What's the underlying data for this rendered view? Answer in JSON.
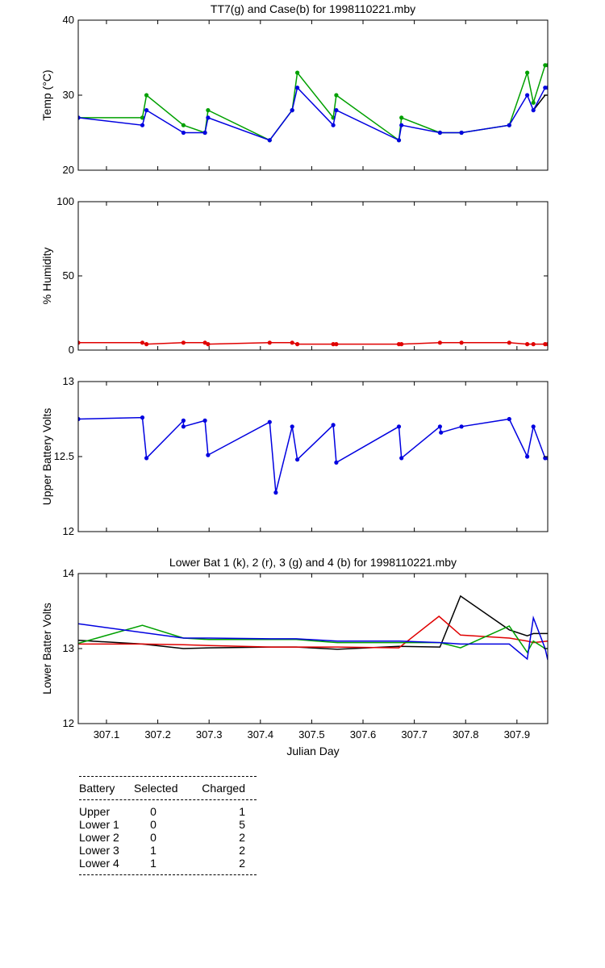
{
  "chart_data": [
    {
      "type": "line",
      "title": "TT7(g) and Case(b) for 1998110221.mby",
      "ylabel": "Temp (°C)",
      "xlabel": "",
      "xlim": [
        307.045,
        307.96
      ],
      "ylim": [
        20,
        40
      ],
      "yticks": [
        20,
        30,
        40
      ],
      "xticks": [
        307.1,
        307.2,
        307.3,
        307.4,
        307.5,
        307.6,
        307.7,
        307.8,
        307.9
      ],
      "show_xtick_labels": false,
      "series": [
        {
          "color": "#00a000",
          "markers": true,
          "x": [
            307.045,
            307.17,
            307.178,
            307.25,
            307.292,
            307.298,
            307.418,
            307.462,
            307.472,
            307.542,
            307.548,
            307.67,
            307.675,
            307.75,
            307.792,
            307.885,
            307.92,
            307.932,
            307.955,
            307.96
          ],
          "y": [
            27,
            27,
            30,
            26,
            25,
            28,
            24,
            28,
            33,
            27,
            30,
            24,
            27,
            25,
            25,
            26,
            33,
            29,
            34,
            34
          ]
        },
        {
          "color": "#000000",
          "markers": false,
          "x": [
            307.932,
            307.955,
            307.96
          ],
          "y": [
            28,
            30,
            30
          ]
        },
        {
          "color": "#0000e0",
          "markers": true,
          "x": [
            307.045,
            307.17,
            307.178,
            307.25,
            307.292,
            307.298,
            307.418,
            307.462,
            307.472,
            307.542,
            307.548,
            307.67,
            307.675,
            307.75,
            307.792,
            307.885,
            307.92,
            307.932,
            307.955,
            307.96
          ],
          "y": [
            27,
            26,
            28,
            25,
            25,
            27,
            24,
            28,
            31,
            26,
            28,
            24,
            26,
            25,
            25,
            26,
            30,
            28,
            31,
            31
          ]
        }
      ]
    },
    {
      "type": "line",
      "title": "",
      "ylabel": "% Humidity",
      "xlabel": "",
      "xlim": [
        307.045,
        307.96
      ],
      "ylim": [
        0,
        100
      ],
      "yticks": [
        0,
        50,
        100
      ],
      "xticks": [
        307.1,
        307.2,
        307.3,
        307.4,
        307.5,
        307.6,
        307.7,
        307.8,
        307.9
      ],
      "show_xtick_labels": false,
      "series": [
        {
          "color": "#e00000",
          "markers": true,
          "x": [
            307.045,
            307.17,
            307.178,
            307.25,
            307.292,
            307.298,
            307.418,
            307.462,
            307.472,
            307.542,
            307.548,
            307.67,
            307.675,
            307.75,
            307.792,
            307.885,
            307.92,
            307.932,
            307.955,
            307.96
          ],
          "y": [
            5,
            5,
            4,
            5,
            5,
            4,
            5,
            5,
            4,
            4,
            4,
            4,
            4,
            5,
            5,
            5,
            4,
            4,
            4,
            4
          ]
        }
      ]
    },
    {
      "type": "line",
      "title": "",
      "ylabel": "Upper Battery Volts",
      "xlabel": "",
      "xlim": [
        307.045,
        307.96
      ],
      "ylim": [
        12,
        13
      ],
      "yticks": [
        12,
        12.5,
        13
      ],
      "xticks": [
        307.1,
        307.2,
        307.3,
        307.4,
        307.5,
        307.6,
        307.7,
        307.8,
        307.9
      ],
      "show_xtick_labels": false,
      "series": [
        {
          "color": "#0000e0",
          "markers": true,
          "x": [
            307.045,
            307.17,
            307.178,
            307.25,
            307.25,
            307.292,
            307.298,
            307.418,
            307.43,
            307.462,
            307.472,
            307.542,
            307.548,
            307.67,
            307.675,
            307.75,
            307.752,
            307.792,
            307.885,
            307.92,
            307.932,
            307.955,
            307.96
          ],
          "y": [
            12.75,
            12.76,
            12.49,
            12.74,
            12.7,
            12.74,
            12.51,
            12.73,
            12.26,
            12.7,
            12.48,
            12.71,
            12.46,
            12.7,
            12.49,
            12.7,
            12.66,
            12.7,
            12.75,
            12.5,
            12.7,
            12.49,
            12.49
          ]
        }
      ]
    },
    {
      "type": "line",
      "title": "Lower Bat 1 (k), 2 (r), 3 (g) and 4 (b) for 1998110221.mby",
      "ylabel": "Lower Batter Volts",
      "xlabel": "Julian Day",
      "xlim": [
        307.045,
        307.96
      ],
      "ylim": [
        12,
        14
      ],
      "yticks": [
        12,
        13,
        14
      ],
      "xticks": [
        307.1,
        307.2,
        307.3,
        307.4,
        307.5,
        307.6,
        307.7,
        307.8,
        307.9
      ],
      "show_xtick_labels": true,
      "series": [
        {
          "color": "#000000",
          "markers": false,
          "x": [
            307.045,
            307.17,
            307.25,
            307.3,
            307.42,
            307.47,
            307.55,
            307.67,
            307.75,
            307.79,
            307.885,
            307.92,
            307.932,
            307.96
          ],
          "y": [
            13.11,
            13.06,
            13.0,
            13.01,
            13.02,
            13.02,
            12.99,
            13.03,
            13.02,
            13.7,
            13.25,
            13.17,
            13.2,
            13.2
          ]
        },
        {
          "color": "#e00000",
          "markers": false,
          "x": [
            307.045,
            307.17,
            307.25,
            307.3,
            307.42,
            307.47,
            307.55,
            307.67,
            307.748,
            307.79,
            307.885,
            307.92,
            307.932,
            307.96
          ],
          "y": [
            13.06,
            13.06,
            13.05,
            13.04,
            13.02,
            13.02,
            13.02,
            13.01,
            13.43,
            13.18,
            13.14,
            13.1,
            13.08,
            13.1
          ]
        },
        {
          "color": "#00a000",
          "markers": false,
          "x": [
            307.045,
            307.17,
            307.25,
            307.3,
            307.42,
            307.47,
            307.55,
            307.67,
            307.75,
            307.79,
            307.885,
            307.92,
            307.932,
            307.955,
            307.96
          ],
          "y": [
            13.07,
            13.31,
            13.14,
            13.12,
            13.12,
            13.12,
            13.08,
            13.08,
            13.08,
            13.01,
            13.3,
            12.95,
            13.1,
            13.0,
            13.0
          ]
        },
        {
          "color": "#0000e0",
          "markers": false,
          "x": [
            307.045,
            307.25,
            307.3,
            307.42,
            307.47,
            307.55,
            307.67,
            307.75,
            307.79,
            307.885,
            307.92,
            307.932,
            307.955,
            307.96
          ],
          "y": [
            13.33,
            13.14,
            13.14,
            13.13,
            13.13,
            13.1,
            13.1,
            13.08,
            13.06,
            13.06,
            12.86,
            13.41,
            13.0,
            12.85
          ]
        }
      ]
    }
  ],
  "battery_table": {
    "headers": [
      "Battery",
      "Selected",
      "Charged"
    ],
    "rows": [
      {
        "battery": "Upper",
        "selected": "0",
        "charged": "1"
      },
      {
        "battery": "Lower 1",
        "selected": "0",
        "charged": "5"
      },
      {
        "battery": "Lower 2",
        "selected": "0",
        "charged": "2"
      },
      {
        "battery": "Lower 3",
        "selected": "1",
        "charged": "2"
      },
      {
        "battery": "Lower 4",
        "selected": "1",
        "charged": "2"
      }
    ]
  }
}
